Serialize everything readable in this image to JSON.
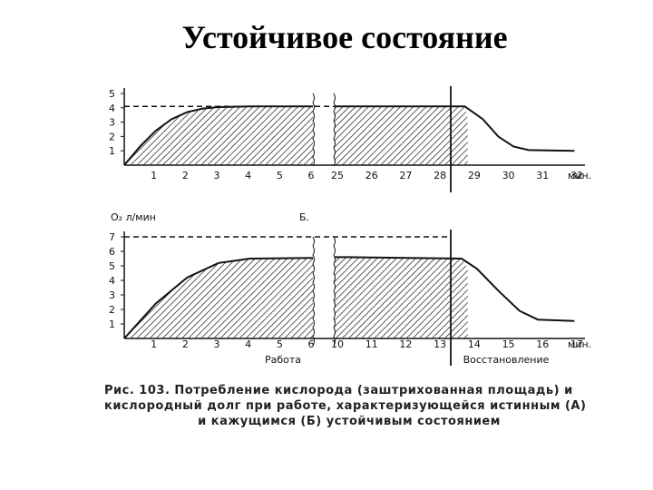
{
  "slide_title": "Устойчивое состояние",
  "caption_lines": [
    "Рис. 103. Потребление кислорода (заштрихованная площадь) и",
    "кислородный долг при работе, характеризующейся истинным (А)",
    "и кажущимся (Б) устойчивым состоянием"
  ],
  "colors": {
    "ink": "#111111",
    "background": "#ffffff"
  },
  "chart_data": [
    {
      "type": "area",
      "panel_label": "",
      "ylabel": "",
      "xlabel": "",
      "ylim": [
        0,
        5
      ],
      "yticks": [
        1,
        2,
        3,
        4,
        5
      ],
      "x_segments": [
        {
          "ticks": [
            "1",
            "2",
            "3",
            "4",
            "5",
            "6"
          ]
        },
        {
          "ticks": [
            "25",
            "26",
            "27",
            "28",
            "29",
            "30",
            "31",
            "32"
          ]
        }
      ],
      "x_unit": "мин.",
      "oxygen_demand_dashed": 4.1,
      "consumption_curve": [
        {
          "x": 0,
          "y": 0
        },
        {
          "x": 0.5,
          "y": 1.3
        },
        {
          "x": 1,
          "y": 2.4
        },
        {
          "x": 1.5,
          "y": 3.2
        },
        {
          "x": 2,
          "y": 3.7
        },
        {
          "x": 2.5,
          "y": 3.95
        },
        {
          "x": 3,
          "y": 4.05
        },
        {
          "x": 4,
          "y": 4.1
        },
        {
          "x": 6,
          "y": 4.1
        },
        {
          "x": 25,
          "y": 4.1
        },
        {
          "x": 28.9,
          "y": 4.1
        },
        {
          "x": 29.5,
          "y": 3.2
        },
        {
          "x": 30,
          "y": 2.0
        },
        {
          "x": 30.5,
          "y": 1.3
        },
        {
          "x": 31,
          "y": 1.05
        },
        {
          "x": 32.5,
          "y": 1.0
        }
      ],
      "work_ends_at": 29
    },
    {
      "type": "area",
      "panel_label": "Б.",
      "ylabel": "O₂ л/мин",
      "xlabel_work": "Работа",
      "xlabel_recovery": "Восстановление",
      "ylim": [
        0,
        7
      ],
      "yticks": [
        1,
        2,
        3,
        4,
        5,
        6,
        7
      ],
      "x_segments": [
        {
          "ticks": [
            "1",
            "2",
            "3",
            "4",
            "5",
            "6"
          ]
        },
        {
          "ticks": [
            "10",
            "11",
            "12",
            "13",
            "14",
            "15",
            "16",
            "17"
          ]
        }
      ],
      "x_unit": "мин.",
      "oxygen_demand_dashed": 7,
      "consumption_curve": [
        {
          "x": 0,
          "y": 0
        },
        {
          "x": 1,
          "y": 2.4
        },
        {
          "x": 2,
          "y": 4.2
        },
        {
          "x": 3,
          "y": 5.2
        },
        {
          "x": 4,
          "y": 5.5
        },
        {
          "x": 6,
          "y": 5.55
        },
        {
          "x": 10,
          "y": 5.6
        },
        {
          "x": 13.8,
          "y": 5.5
        },
        {
          "x": 14.3,
          "y": 4.8
        },
        {
          "x": 15,
          "y": 3.3
        },
        {
          "x": 15.7,
          "y": 1.9
        },
        {
          "x": 16.3,
          "y": 1.3
        },
        {
          "x": 17.5,
          "y": 1.2
        }
      ],
      "work_ends_at": 14
    }
  ]
}
